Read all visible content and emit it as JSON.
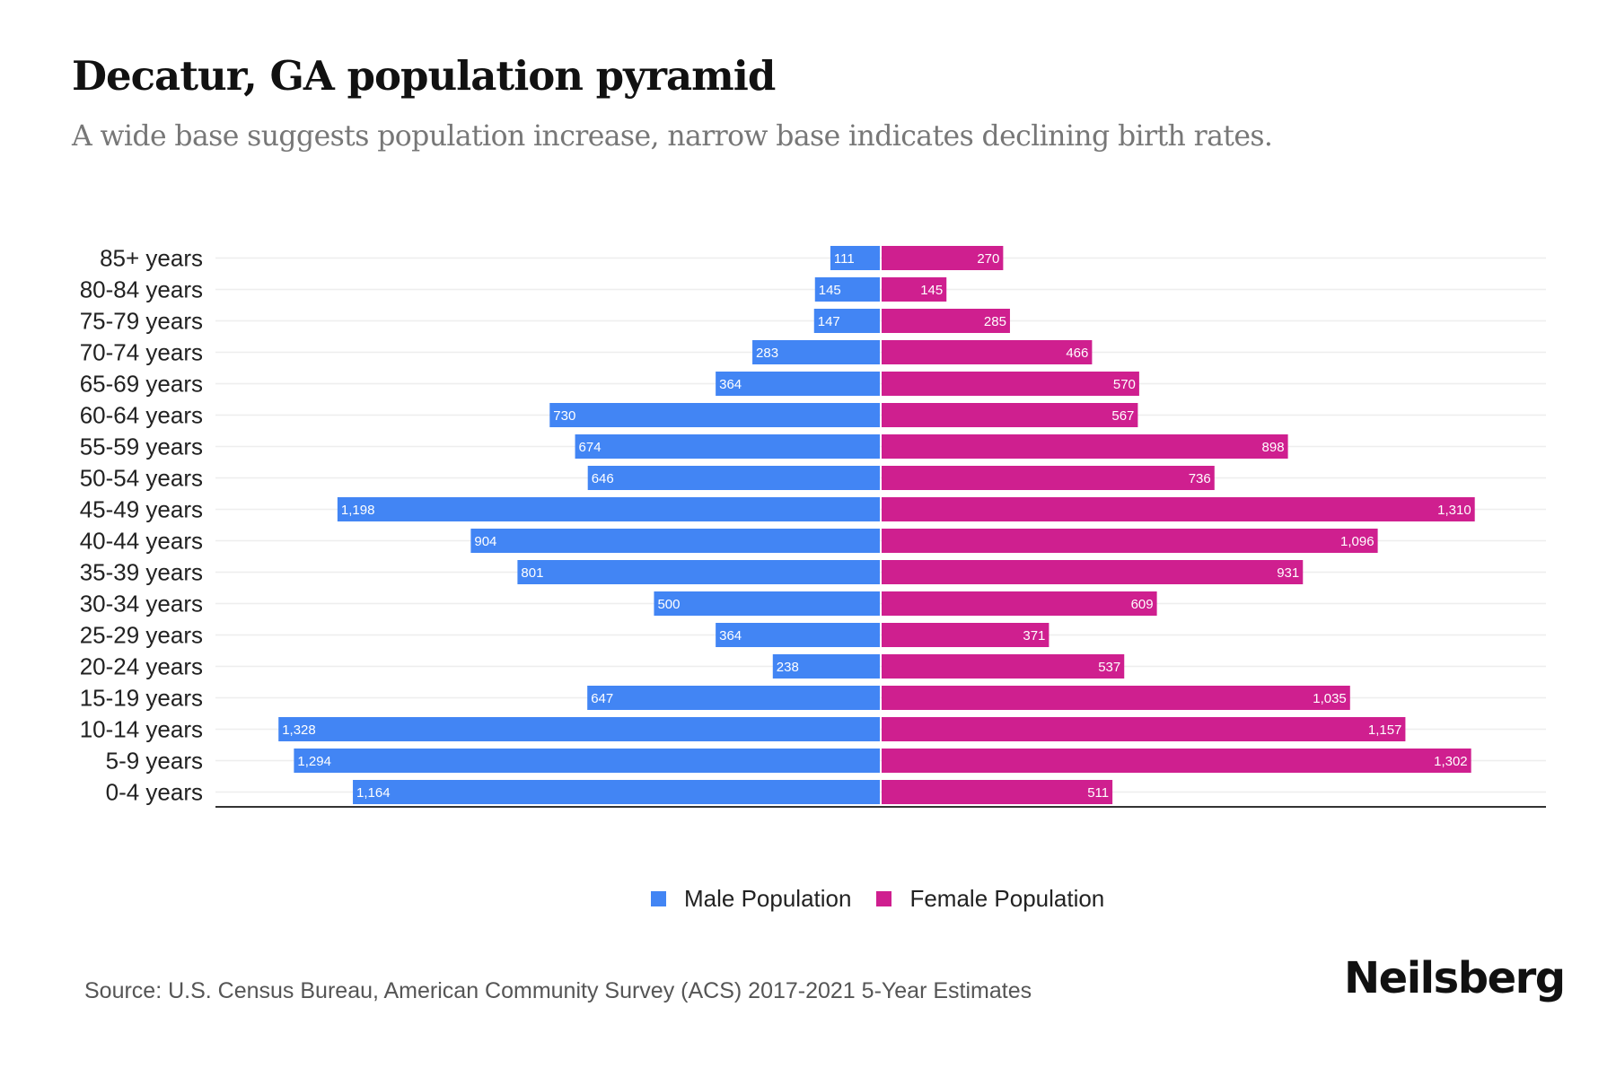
{
  "header": {
    "title": "Decatur, GA population pyramid",
    "subtitle": "A wide base suggests population increase, narrow base indicates declining birth rates."
  },
  "chart_data": {
    "type": "bar",
    "orientation": "horizontal-diverging",
    "title": "Decatur, GA population pyramid",
    "subtitle": "A wide base suggests population increase, narrow base indicates declining birth rates.",
    "xlabel": "",
    "ylabel": "",
    "xlim": [
      -1467,
      1467
    ],
    "grid": true,
    "legend_position": "bottom-center",
    "categories": [
      "85+ years",
      "80-84 years",
      "75-79 years",
      "70-74 years",
      "65-69 years",
      "60-64 years",
      "55-59 years",
      "50-54 years",
      "45-49 years",
      "40-44 years",
      "35-39 years",
      "30-34 years",
      "25-29 years",
      "20-24 years",
      "15-19 years",
      "10-14 years",
      "5-9 years",
      "0-4 years"
    ],
    "series": [
      {
        "name": "Male Population",
        "color": "#4285f4",
        "side": "left",
        "values": [
          111,
          145,
          147,
          283,
          364,
          730,
          674,
          646,
          1198,
          904,
          801,
          500,
          364,
          238,
          647,
          1328,
          1294,
          1164
        ],
        "labels": [
          "111",
          "145",
          "147",
          "283",
          "364",
          "730",
          "674",
          "646",
          "1,198",
          "904",
          "801",
          "500",
          "364",
          "238",
          "647",
          "1,328",
          "1,294",
          "1,164"
        ]
      },
      {
        "name": "Female Population",
        "color": "#cf1f8f",
        "side": "right",
        "values": [
          270,
          145,
          285,
          466,
          570,
          567,
          898,
          736,
          1310,
          1096,
          931,
          609,
          371,
          537,
          1035,
          1157,
          1302,
          511
        ],
        "labels": [
          "270",
          "145",
          "285",
          "466",
          "570",
          "567",
          "898",
          "736",
          "1,310",
          "1,096",
          "931",
          "609",
          "371",
          "537",
          "1,035",
          "1,157",
          "1,302",
          "511"
        ]
      }
    ]
  },
  "legend": {
    "male_label": "Male Population",
    "female_label": "Female Population"
  },
  "footer": {
    "source": "Source: U.S. Census Bureau, American Community Survey (ACS) 2017-2021 5-Year Estimates",
    "brand": "Neilsberg"
  }
}
